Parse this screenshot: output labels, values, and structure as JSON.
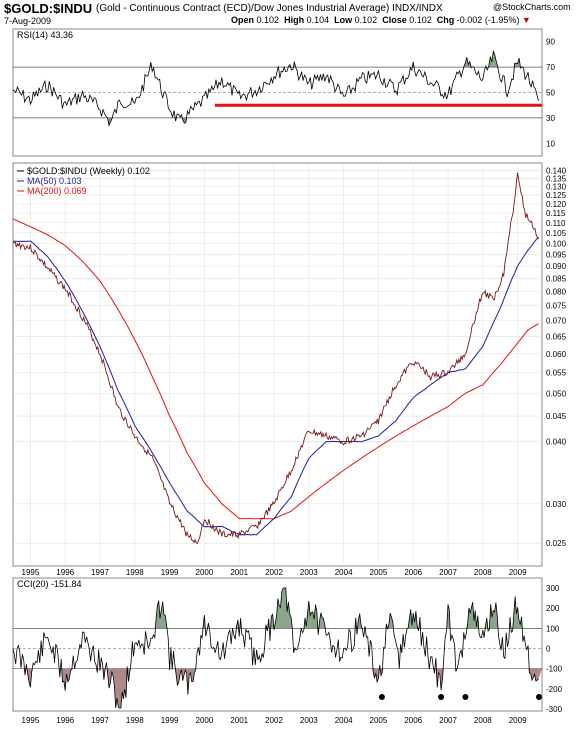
{
  "header": {
    "symbol": "$GOLD:$INDU",
    "description": "(Gold - Continuous Contract (ECD)/Dow Jones Industrial Average) INDX/INDX",
    "credit": "@StockCharts.com",
    "date": "7-Aug-2009",
    "open_label": "Open",
    "open": "0.102",
    "high_label": "High",
    "high": "0.104",
    "low_label": "Low",
    "low": "0.102",
    "close_label": "Close",
    "close": "0.102",
    "chg_label": "Chg",
    "chg": "-0.002 (-1.95%)",
    "chg_marker": "▼"
  },
  "colors": {
    "price": "#000000",
    "price_down": "#8b0000",
    "ma50": "#1e1ea0",
    "ma200": "#e81010",
    "trendline": "#e81010",
    "fill_high": "#3a6b3a",
    "fill_low": "#7a3a3a",
    "grid": "#bfbfbf"
  },
  "chart_data": [
    {
      "type": "line",
      "panel": "top",
      "legend": "RSI(14) 43.36",
      "ylim": [
        0,
        100
      ],
      "yticks": [
        10,
        30,
        50,
        70,
        90
      ],
      "reference_lines": [
        30,
        50,
        70
      ],
      "x": [
        1994.5,
        1995.0,
        1995.5,
        1996.0,
        1996.5,
        1997.0,
        1997.3,
        1997.6,
        1998.0,
        1998.5,
        1998.8,
        1999.0,
        1999.3,
        1999.6,
        1999.9,
        2000.0,
        2000.5,
        2001.0,
        2001.5,
        2002.0,
        2002.5,
        2003.0,
        2003.5,
        2004.0,
        2004.5,
        2005.0,
        2005.5,
        2006.0,
        2006.5,
        2007.0,
        2007.5,
        2008.0,
        2008.3,
        2008.7,
        2009.0,
        2009.3,
        2009.6
      ],
      "values": [
        52,
        44,
        56,
        40,
        48,
        38,
        26,
        44,
        40,
        72,
        50,
        38,
        26,
        34,
        42,
        44,
        60,
        46,
        52,
        64,
        72,
        56,
        64,
        46,
        60,
        64,
        52,
        70,
        58,
        48,
        74,
        60,
        78,
        52,
        74,
        62,
        43.36
      ],
      "trendline": {
        "from": [
          2000.3,
          40
        ],
        "to": [
          2009.7,
          40
        ]
      }
    },
    {
      "type": "line",
      "panel": "main",
      "legend": [
        "$GOLD:$INDU (Weekly) 0.102",
        "MA(50) 0.103",
        "MA(200) 0.069"
      ],
      "ylim": [
        0.0225,
        0.145
      ],
      "yscale": "log",
      "yticks": [
        0.025,
        0.03,
        0.04,
        0.045,
        0.05,
        0.055,
        0.06,
        0.065,
        0.07,
        0.075,
        0.08,
        0.085,
        0.09,
        0.095,
        0.1,
        0.105,
        0.11,
        0.115,
        0.12,
        0.125,
        0.13,
        0.135,
        0.14
      ],
      "xticks": [
        "1995",
        "1996",
        "1997",
        "1998",
        "1999",
        "2000",
        "2001",
        "2002",
        "2003",
        "2004",
        "2005",
        "2006",
        "2007",
        "2008",
        "2009"
      ],
      "xlim": [
        1994.5,
        2009.7
      ],
      "series": [
        {
          "name": "$GOLD:$INDU (Weekly)",
          "x": [
            1994.5,
            1995.0,
            1995.5,
            1996.0,
            1996.5,
            1997.0,
            1997.5,
            1998.0,
            1998.5,
            1999.0,
            1999.5,
            1999.8,
            2000.0,
            2000.5,
            2001.0,
            2001.5,
            2002.0,
            2002.5,
            2003.0,
            2003.5,
            2004.0,
            2004.5,
            2005.0,
            2005.5,
            2006.0,
            2006.5,
            2007.0,
            2007.5,
            2008.0,
            2008.3,
            2008.6,
            2008.9,
            2009.0,
            2009.2,
            2009.4,
            2009.6
          ],
          "values": [
            0.1,
            0.098,
            0.089,
            0.081,
            0.071,
            0.06,
            0.047,
            0.041,
            0.037,
            0.03,
            0.026,
            0.025,
            0.028,
            0.026,
            0.026,
            0.027,
            0.03,
            0.035,
            0.042,
            0.041,
            0.04,
            0.041,
            0.044,
            0.052,
            0.058,
            0.054,
            0.055,
            0.06,
            0.08,
            0.077,
            0.087,
            0.12,
            0.14,
            0.115,
            0.11,
            0.102
          ]
        },
        {
          "name": "MA(50)",
          "x": [
            1994.5,
            1995.0,
            1995.5,
            1996.0,
            1996.5,
            1997.0,
            1997.5,
            1998.0,
            1998.5,
            1999.0,
            1999.5,
            2000.0,
            2000.5,
            2001.0,
            2001.5,
            2002.0,
            2002.5,
            2003.0,
            2003.5,
            2004.0,
            2004.5,
            2005.0,
            2005.5,
            2006.0,
            2006.5,
            2007.0,
            2007.5,
            2008.0,
            2008.5,
            2009.0,
            2009.3,
            2009.6
          ],
          "values": [
            0.101,
            0.101,
            0.094,
            0.084,
            0.073,
            0.062,
            0.051,
            0.043,
            0.038,
            0.033,
            0.029,
            0.027,
            0.027,
            0.026,
            0.026,
            0.028,
            0.031,
            0.037,
            0.04,
            0.04,
            0.04,
            0.041,
            0.044,
            0.049,
            0.052,
            0.055,
            0.056,
            0.062,
            0.074,
            0.09,
            0.097,
            0.103
          ]
        },
        {
          "name": "MA(200)",
          "x": [
            1994.5,
            1995.0,
            1995.5,
            1996.0,
            1996.5,
            1997.0,
            1997.5,
            1998.0,
            1998.5,
            1999.0,
            1999.5,
            2000.0,
            2000.5,
            2001.0,
            2001.5,
            2002.0,
            2002.5,
            2003.0,
            2003.5,
            2004.0,
            2004.5,
            2005.0,
            2005.5,
            2006.0,
            2006.5,
            2007.0,
            2007.5,
            2008.0,
            2008.5,
            2009.0,
            2009.3,
            2009.6
          ],
          "values": [
            0.112,
            0.108,
            0.104,
            0.099,
            0.092,
            0.084,
            0.074,
            0.064,
            0.054,
            0.045,
            0.038,
            0.033,
            0.03,
            0.028,
            0.028,
            0.028,
            0.029,
            0.031,
            0.033,
            0.035,
            0.037,
            0.039,
            0.041,
            0.043,
            0.045,
            0.047,
            0.05,
            0.052,
            0.057,
            0.063,
            0.067,
            0.069
          ]
        }
      ]
    },
    {
      "type": "line",
      "panel": "bottom",
      "legend": "CCI(20) -151.84",
      "ylim": [
        -310,
        350
      ],
      "yticks": [
        -300,
        -200,
        -100,
        0,
        100,
        200,
        300
      ],
      "reference_lines": [
        -100,
        0,
        100
      ],
      "xticks": [
        "1995",
        "1996",
        "1997",
        "1998",
        "1999",
        "2000",
        "2001",
        "2002",
        "2003",
        "2004",
        "2005",
        "2006",
        "2007",
        "2008",
        "2009"
      ],
      "x": [
        1994.5,
        1995.0,
        1995.5,
        1996.0,
        1996.5,
        1997.0,
        1997.3,
        1997.6,
        1998.0,
        1998.5,
        1998.8,
        1999.0,
        1999.3,
        1999.6,
        1999.9,
        2000.0,
        2000.5,
        2001.0,
        2001.5,
        2002.0,
        2002.3,
        2002.6,
        2003.0,
        2003.5,
        2004.0,
        2004.5,
        2005.0,
        2005.3,
        2005.6,
        2006.0,
        2006.5,
        2006.8,
        2007.0,
        2007.3,
        2007.6,
        2008.0,
        2008.3,
        2008.6,
        2009.0,
        2009.3,
        2009.6
      ],
      "values": [
        0,
        -130,
        60,
        -160,
        50,
        -80,
        -160,
        -300,
        40,
        20,
        280,
        -40,
        -150,
        -180,
        50,
        120,
        -40,
        120,
        -60,
        150,
        340,
        -50,
        220,
        60,
        -20,
        140,
        -170,
        130,
        -40,
        180,
        -60,
        -170,
        160,
        -120,
        220,
        40,
        230,
        -30,
        240,
        -50,
        -151.84
      ],
      "markers": [
        2005.1,
        2006.8,
        2007.5,
        2009.7
      ]
    }
  ]
}
